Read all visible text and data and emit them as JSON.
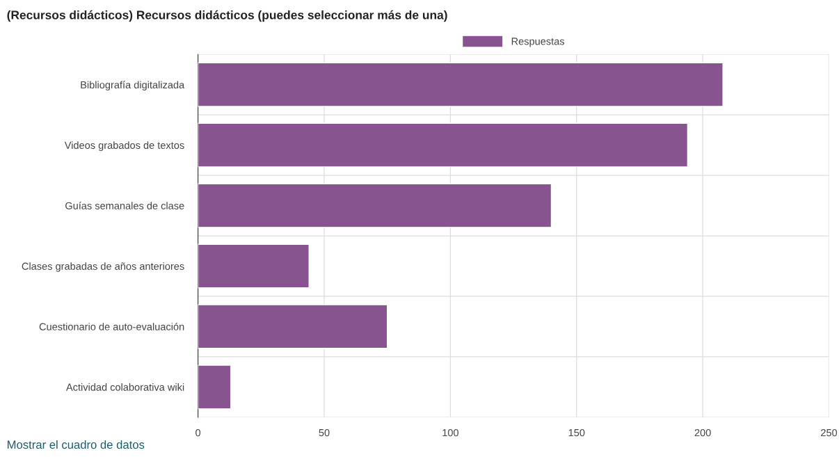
{
  "chart_data": {
    "type": "bar",
    "orientation": "horizontal",
    "title": "(Recursos didácticos) Recursos didácticos (puedes seleccionar más de una)",
    "categories": [
      "Bibliografía digitalizada",
      "Videos grabados de textos",
      "Guías semanales de clase",
      "Clases grabadas de años anteriores",
      "Cuestionario de auto-evaluación",
      "Actividad colaborativa wiki"
    ],
    "series": [
      {
        "name": "Respuestas",
        "color": "#87548f",
        "values": [
          208,
          194,
          140,
          44,
          75,
          13
        ]
      }
    ],
    "xlim": [
      0,
      250
    ],
    "xticks": [
      0,
      50,
      100,
      150,
      200,
      250
    ],
    "grid": true,
    "legend": "top",
    "annotations": [
      "Mostrar el cuadro de datos"
    ]
  }
}
